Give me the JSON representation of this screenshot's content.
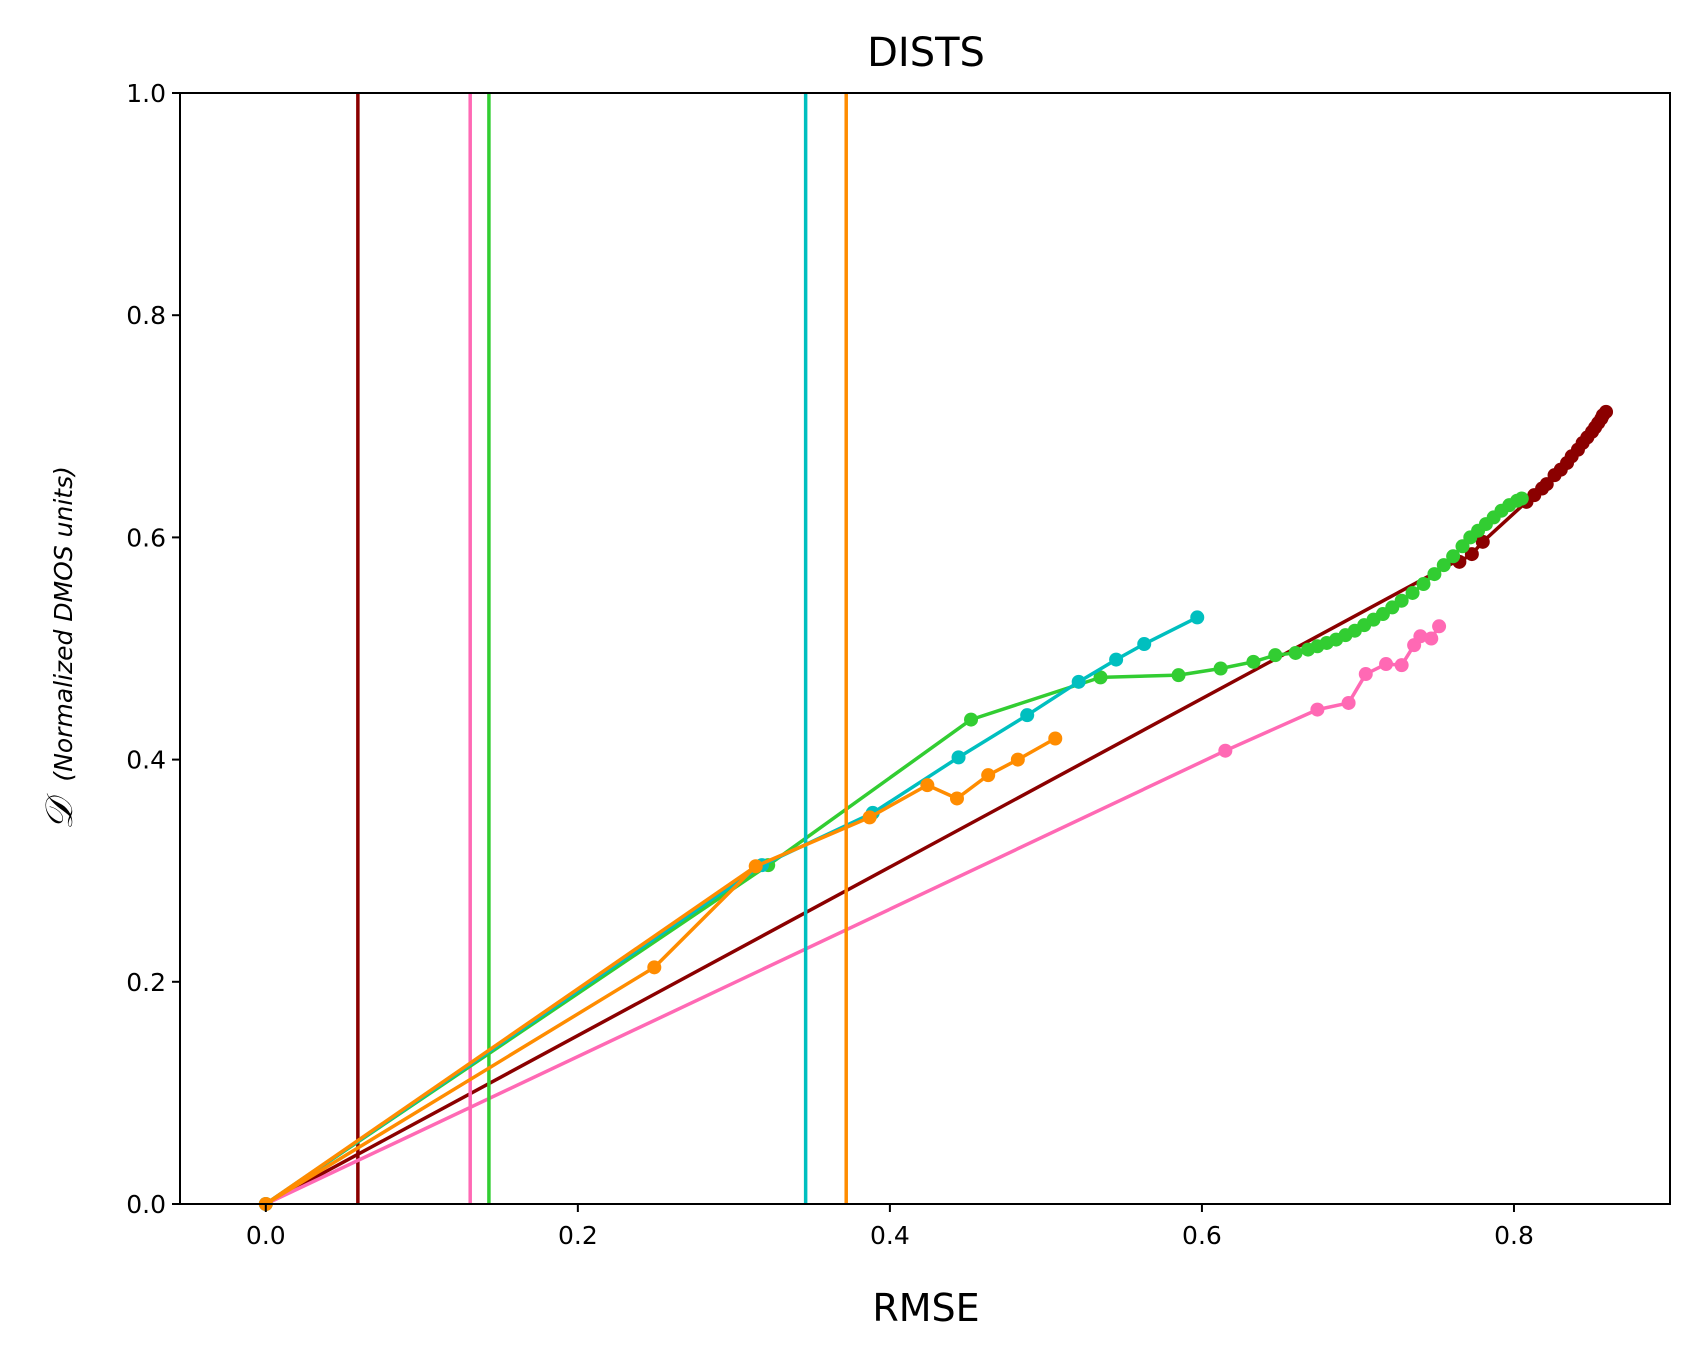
{
  "chart_data": {
    "type": "line",
    "title": "DISTS",
    "xlabel": "RMSE",
    "ylabel_symbol": "𝒟",
    "ylabel_note": "(Normalized DMOS units)",
    "xlim": [
      -0.055,
      0.9
    ],
    "ylim": [
      0.0,
      1.0
    ],
    "xticks": [
      "0.0",
      "0.2",
      "0.4",
      "0.6",
      "0.8"
    ],
    "xtick_values": [
      0.0,
      0.2,
      0.4,
      0.6,
      0.8
    ],
    "yticks": [
      "0.0",
      "0.2",
      "0.4",
      "0.6",
      "0.8",
      "1.0"
    ],
    "ytick_values": [
      0.0,
      0.2,
      0.4,
      0.6,
      0.8,
      1.0
    ],
    "grid": false,
    "legend": "none",
    "series": [
      {
        "color": "#8b0000",
        "vline": 0.059,
        "fit": [
          [
            0.0,
            0.0
          ],
          [
            0.765,
            0.58
          ]
        ],
        "x": [
          0.765,
          0.773,
          0.78,
          0.808,
          0.813,
          0.818,
          0.821,
          0.826,
          0.83,
          0.834,
          0.837,
          0.841,
          0.844,
          0.847,
          0.85,
          0.852,
          0.854,
          0.856,
          0.857,
          0.859
        ],
        "y": [
          0.578,
          0.585,
          0.596,
          0.632,
          0.638,
          0.644,
          0.648,
          0.656,
          0.661,
          0.667,
          0.673,
          0.679,
          0.685,
          0.69,
          0.695,
          0.699,
          0.703,
          0.707,
          0.71,
          0.713
        ]
      },
      {
        "color": "#ff69b4",
        "vline": 0.131,
        "fit": [
          [
            0.0,
            0.0
          ],
          [
            0.615,
            0.408
          ]
        ],
        "x": [
          0.615,
          0.674,
          0.694,
          0.705,
          0.718,
          0.728,
          0.736,
          0.74,
          0.747,
          0.752
        ],
        "y": [
          0.408,
          0.445,
          0.451,
          0.477,
          0.486,
          0.485,
          0.503,
          0.511,
          0.509,
          0.52
        ]
      },
      {
        "color": "#32cd32",
        "vline": 0.143,
        "fit": [
          [
            0.0,
            0.0
          ],
          [
            0.322,
            0.305
          ]
        ],
        "x": [
          0.322,
          0.452,
          0.535,
          0.585,
          0.612,
          0.633,
          0.647,
          0.66,
          0.668,
          0.674,
          0.68,
          0.686,
          0.692,
          0.698,
          0.704,
          0.71,
          0.716,
          0.722,
          0.728,
          0.735,
          0.742,
          0.749,
          0.755,
          0.761,
          0.767,
          0.772,
          0.777,
          0.782,
          0.787,
          0.792,
          0.797,
          0.802,
          0.805
        ],
        "y": [
          0.305,
          0.436,
          0.474,
          0.476,
          0.482,
          0.488,
          0.494,
          0.496,
          0.499,
          0.502,
          0.505,
          0.508,
          0.512,
          0.516,
          0.521,
          0.526,
          0.531,
          0.537,
          0.543,
          0.55,
          0.558,
          0.567,
          0.575,
          0.583,
          0.592,
          0.6,
          0.606,
          0.612,
          0.618,
          0.624,
          0.629,
          0.633,
          0.635
        ]
      },
      {
        "color": "#00bfbf",
        "vline": 0.346,
        "fit": [
          [
            0.0,
            0.0
          ],
          [
            0.318,
            0.305
          ]
        ],
        "x": [
          0.0,
          0.318,
          0.389,
          0.444,
          0.488,
          0.521,
          0.545,
          0.563,
          0.597
        ],
        "y": [
          0.0,
          0.305,
          0.352,
          0.402,
          0.44,
          0.47,
          0.49,
          0.504,
          0.528
        ]
      },
      {
        "color": "#ff8c00",
        "vline": 0.372,
        "fit": [
          [
            0.0,
            0.0
          ],
          [
            0.314,
            0.304
          ]
        ],
        "x": [
          0.0,
          0.249,
          0.314,
          0.387,
          0.424,
          0.443,
          0.463,
          0.482,
          0.506
        ],
        "y": [
          0.0,
          0.213,
          0.304,
          0.348,
          0.377,
          0.365,
          0.386,
          0.4,
          0.419
        ]
      }
    ]
  }
}
